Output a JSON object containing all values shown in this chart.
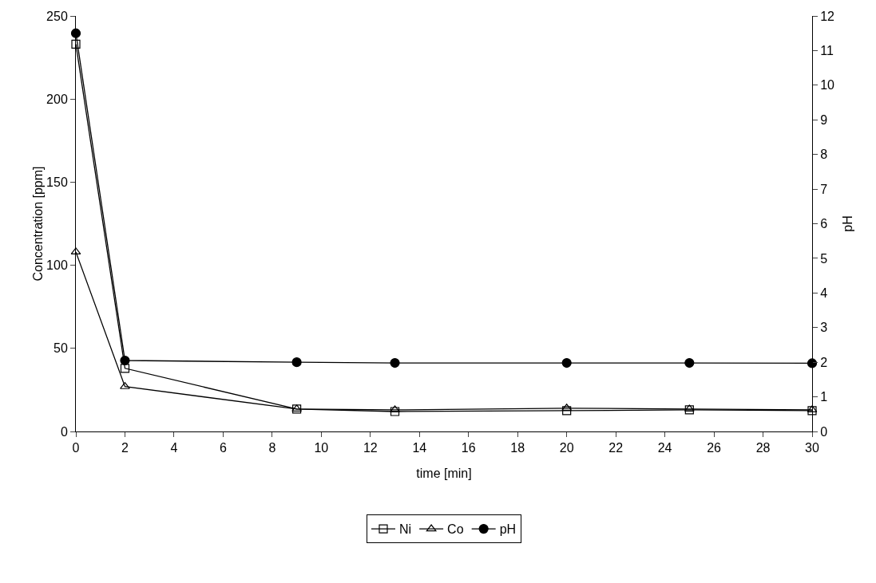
{
  "chart_data": {
    "type": "line",
    "xlabel": "time [min]",
    "ylabel": "Concentration [ppm]",
    "y2label": "pH",
    "x": [
      0,
      2,
      9,
      13,
      20,
      25,
      30
    ],
    "series": [
      {
        "name": "Ni",
        "color": "#000000",
        "marker": "square",
        "values": [
          233,
          38,
          13.5,
          12,
          12.5,
          13,
          12.5
        ]
      },
      {
        "name": "Co",
        "color": "#000000",
        "marker": "triangle",
        "values": [
          108,
          27,
          13.5,
          13,
          14,
          13.5,
          13
        ]
      },
      {
        "name": "pH",
        "color": "#000000",
        "marker": "circle",
        "axis": "y2",
        "values": [
          11.5,
          2.05,
          2,
          1.98,
          1.98,
          1.98,
          1.97
        ]
      }
    ],
    "xlim": [
      0,
      30
    ],
    "xticks": [
      0,
      2,
      4,
      6,
      8,
      10,
      12,
      14,
      16,
      18,
      20,
      22,
      24,
      26,
      28,
      30
    ],
    "ylim": [
      0,
      250
    ],
    "yticks": [
      0,
      50,
      100,
      150,
      200,
      250
    ],
    "y2lim": [
      0,
      12
    ],
    "y2ticks": [
      0,
      1,
      2,
      3,
      4,
      5,
      6,
      7,
      8,
      9,
      10,
      11,
      12
    ],
    "grid": false,
    "legend": "bottom",
    "line_style": "solid"
  }
}
